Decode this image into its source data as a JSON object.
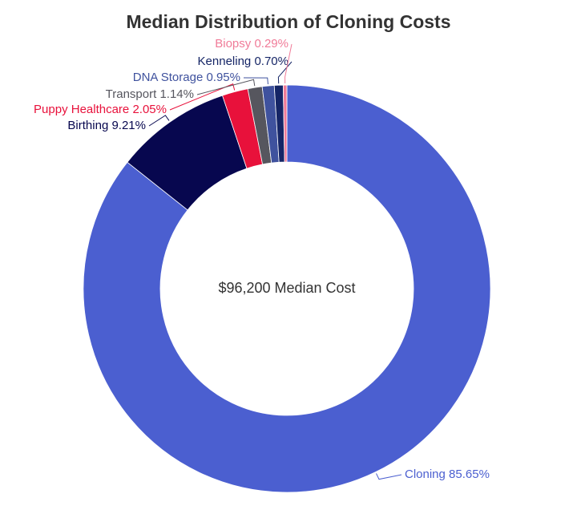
{
  "chart_data": {
    "type": "pie",
    "title": "Median Distribution of Cloning Costs",
    "center_label": "$96,200 Median Cost",
    "categories": [
      "Cloning",
      "Birthing",
      "Puppy Healthcare",
      "Transport",
      "DNA Storage",
      "Kenneling",
      "Biopsy"
    ],
    "values": [
      85.65,
      9.21,
      2.05,
      1.14,
      0.95,
      0.7,
      0.29
    ],
    "value_labels": [
      "85.65%",
      "9.21%",
      "2.05%",
      "1.14%",
      "0.95%",
      "0.70%",
      "0.29%"
    ],
    "colors": [
      "#4b5fd0",
      "#07074f",
      "#e8113b",
      "#56565e",
      "#3f529e",
      "#152566",
      "#f07b98"
    ]
  }
}
